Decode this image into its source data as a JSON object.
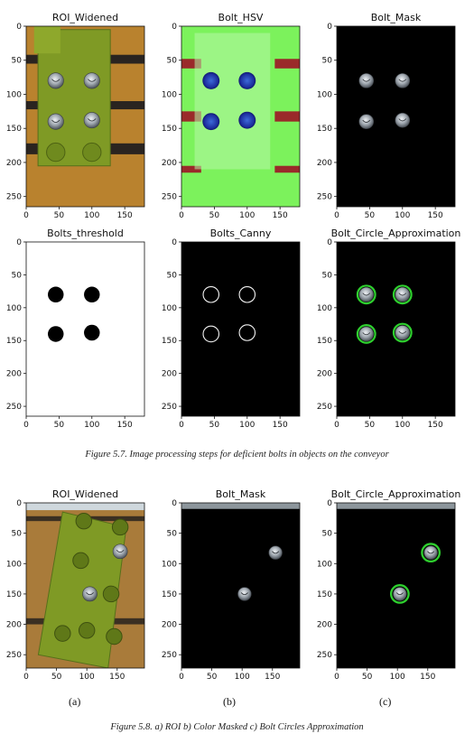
{
  "figure_1": {
    "caption": "Figure 5.7.   Image processing steps for deficient bolts in objects on the conveyor",
    "panels": [
      {
        "title": "ROI_Widened",
        "kind": "roi_plate",
        "xticks": [
          "0",
          "50",
          "100",
          "150"
        ],
        "yticks": [
          "0",
          "50",
          "100",
          "150",
          "200",
          "250"
        ]
      },
      {
        "title": "Bolt_HSV",
        "kind": "hsv",
        "xticks": [
          "0",
          "50",
          "100",
          "150"
        ],
        "yticks": [
          "0",
          "50",
          "100",
          "150",
          "200",
          "250"
        ]
      },
      {
        "title": "Bolt_Mask",
        "kind": "mask",
        "xticks": [
          "0",
          "50",
          "100",
          "150"
        ],
        "yticks": [
          "0",
          "50",
          "100",
          "150",
          "200",
          "250"
        ]
      },
      {
        "title": "Bolts_threshold",
        "kind": "threshold",
        "xticks": [
          "0",
          "50",
          "100",
          "150"
        ],
        "yticks": [
          "0",
          "50",
          "100",
          "150",
          "200",
          "250"
        ]
      },
      {
        "title": "Bolts_Canny",
        "kind": "canny",
        "xticks": [
          "0",
          "50",
          "100",
          "150"
        ],
        "yticks": [
          "0",
          "50",
          "100",
          "150",
          "200",
          "250"
        ]
      },
      {
        "title": "Bolt_Circle_Approximation",
        "kind": "circles",
        "xticks": [
          "0",
          "50",
          "100",
          "150"
        ],
        "yticks": [
          "0",
          "50",
          "100",
          "150",
          "200",
          "250"
        ]
      }
    ]
  },
  "figure_2": {
    "caption": "Figure 5.8.   a) ROI b) Color Masked c) Bolt Circles Approximation",
    "panels": [
      {
        "title": "ROI_Widened",
        "label": "(a)",
        "kind": "roi_tilted",
        "xticks": [
          "0",
          "50",
          "100",
          "150"
        ],
        "yticks": [
          "0",
          "50",
          "100",
          "150",
          "200",
          "250"
        ]
      },
      {
        "title": "Bolt_Mask",
        "label": "(b)",
        "kind": "mask2",
        "xticks": [
          "0",
          "50",
          "100",
          "150"
        ],
        "yticks": [
          "0",
          "50",
          "100",
          "150",
          "200",
          "250"
        ]
      },
      {
        "title": "Bolt_Circle_Approximation",
        "label": "(c)",
        "kind": "circles2",
        "xticks": [
          "0",
          "50",
          "100",
          "150"
        ],
        "yticks": [
          "0",
          "50",
          "100",
          "150",
          "200",
          "250"
        ]
      }
    ]
  },
  "colors": {
    "plate_green": "#7f9a25",
    "hsv_green": "#7cf25c",
    "bolt_silver": "#b9bfc6",
    "circle_green": "#2ed02e",
    "belt_orange": "#b9822e"
  }
}
